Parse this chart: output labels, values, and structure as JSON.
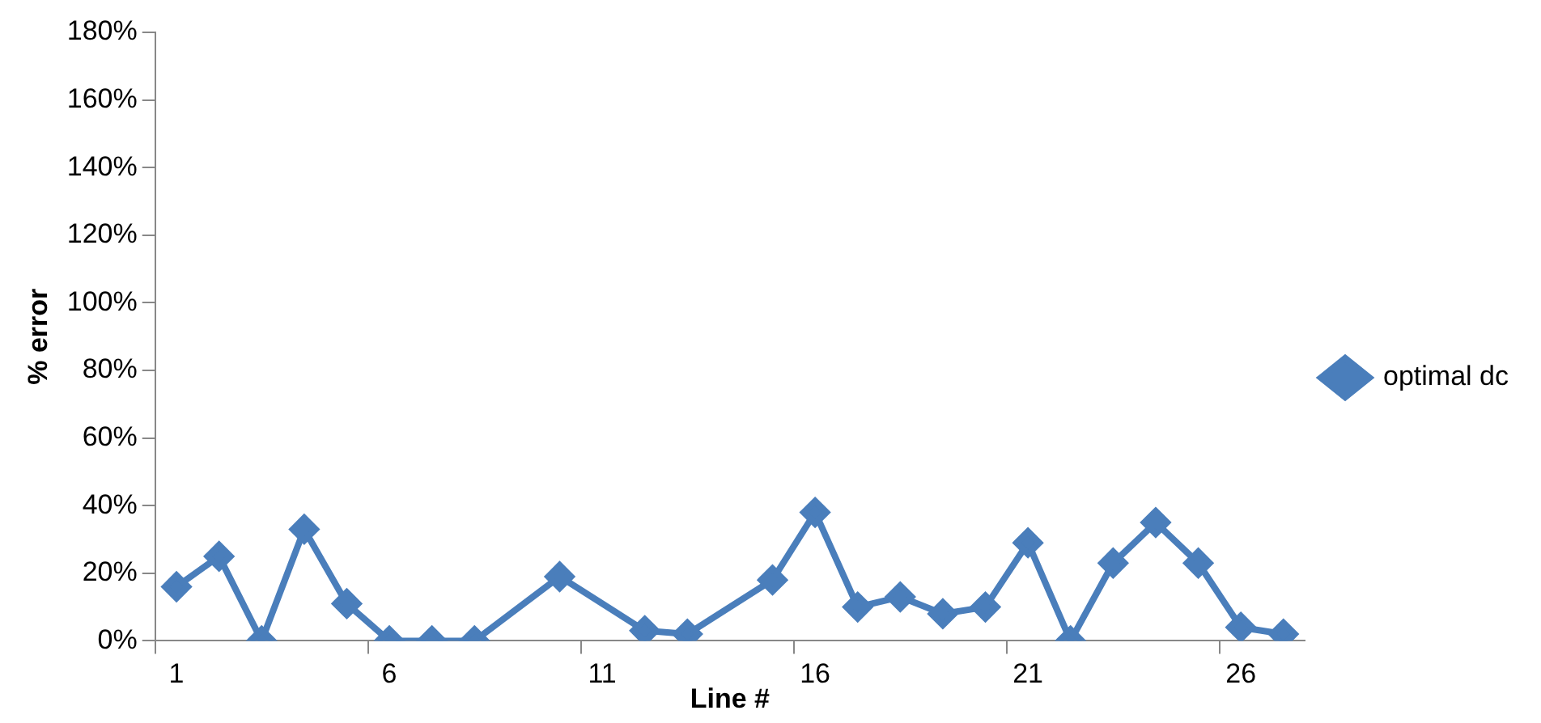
{
  "chart_data": {
    "type": "line",
    "xlabel": "Line #",
    "ylabel": "% error",
    "categories": [
      "1",
      null,
      null,
      null,
      null,
      "6",
      null,
      null,
      null,
      null,
      "11",
      null,
      null,
      null,
      null,
      "16",
      null,
      null,
      null,
      null,
      "21",
      null,
      null,
      null,
      null,
      "26",
      null
    ],
    "series": [
      {
        "name": "optimal dc",
        "color": "#4a7ebb",
        "values": [
          16,
          25,
          0,
          33,
          11,
          0,
          0,
          0,
          null,
          19,
          null,
          3,
          2,
          null,
          18,
          38,
          10,
          13,
          8,
          10,
          29,
          0,
          23,
          35,
          23,
          4,
          2
        ]
      }
    ],
    "ylim": [
      0,
      180
    ],
    "yticks": [
      {
        "value": 0,
        "label": "0%"
      },
      {
        "value": 20,
        "label": "20%"
      },
      {
        "value": 40,
        "label": "40%"
      },
      {
        "value": 60,
        "label": "60%"
      },
      {
        "value": 80,
        "label": "80%"
      },
      {
        "value": 100,
        "label": "100%"
      },
      {
        "value": 120,
        "label": "120%"
      },
      {
        "value": 140,
        "label": "140%"
      },
      {
        "value": 160,
        "label": "160%"
      },
      {
        "value": 180,
        "label": "180%"
      }
    ],
    "grid": false,
    "legend": "right",
    "marker": "diamond",
    "line_style": "solid"
  }
}
